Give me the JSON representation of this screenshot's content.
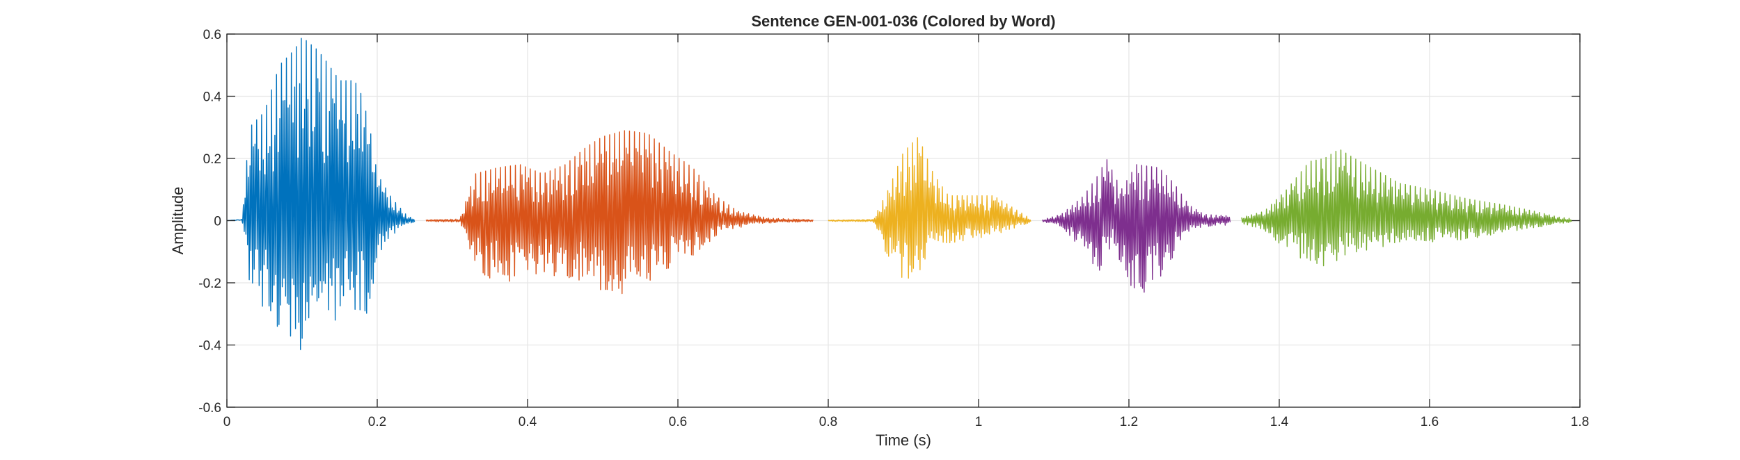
{
  "chart_data": {
    "type": "line",
    "title": "Sentence GEN-001-036 (Colored by Word)",
    "xlabel": "Time (s)",
    "ylabel": "Amplitude",
    "xlim": [
      0,
      1.8
    ],
    "ylim": [
      -0.6,
      0.6
    ],
    "xticks": [
      0,
      0.2,
      0.4,
      0.6,
      0.8,
      1,
      1.2,
      1.4,
      1.6,
      1.8
    ],
    "xtick_labels": [
      "0",
      "0.2",
      "0.4",
      "0.6",
      "0.8",
      "1",
      "1.2",
      "1.4",
      "1.6",
      "1.8"
    ],
    "yticks": [
      -0.6,
      -0.4,
      -0.2,
      0,
      0.2,
      0.4,
      0.6
    ],
    "ytick_labels": [
      "-0.6",
      "-0.4",
      "-0.2",
      "0",
      "0.2",
      "0.4",
      "0.6"
    ],
    "grid": true,
    "series": [
      {
        "color": "#0072BD",
        "t_start": 0.0,
        "t_end": 0.25,
        "envelope": [
          [
            0.0,
            0.0
          ],
          [
            0.02,
            0.004
          ],
          [
            0.03,
            0.3
          ],
          [
            0.05,
            0.35
          ],
          [
            0.07,
            0.5
          ],
          [
            0.09,
            0.55
          ],
          [
            0.1,
            0.59
          ],
          [
            0.12,
            0.55
          ],
          [
            0.13,
            0.52
          ],
          [
            0.15,
            0.45
          ],
          [
            0.17,
            0.45
          ],
          [
            0.18,
            0.4
          ],
          [
            0.19,
            0.3
          ],
          [
            0.2,
            0.15
          ],
          [
            0.22,
            0.07
          ],
          [
            0.24,
            0.015
          ],
          [
            0.25,
            0.005
          ]
        ],
        "envelope_neg": [
          [
            0.0,
            0.0
          ],
          [
            0.02,
            0.004
          ],
          [
            0.03,
            -0.2
          ],
          [
            0.05,
            -0.3
          ],
          [
            0.07,
            -0.36
          ],
          [
            0.1,
            -0.42
          ],
          [
            0.12,
            -0.38
          ],
          [
            0.14,
            -0.33
          ],
          [
            0.16,
            -0.3
          ],
          [
            0.19,
            -0.3
          ],
          [
            0.2,
            -0.12
          ],
          [
            0.22,
            -0.05
          ],
          [
            0.24,
            -0.01
          ],
          [
            0.25,
            -0.005
          ]
        ]
      },
      {
        "color": "#D95319",
        "t_start": 0.265,
        "t_end": 0.78,
        "envelope": [
          [
            0.265,
            0.003
          ],
          [
            0.31,
            0.005
          ],
          [
            0.33,
            0.15
          ],
          [
            0.36,
            0.17
          ],
          [
            0.39,
            0.18
          ],
          [
            0.42,
            0.15
          ],
          [
            0.45,
            0.18
          ],
          [
            0.48,
            0.24
          ],
          [
            0.5,
            0.27
          ],
          [
            0.53,
            0.29
          ],
          [
            0.56,
            0.28
          ],
          [
            0.59,
            0.22
          ],
          [
            0.62,
            0.17
          ],
          [
            0.65,
            0.08
          ],
          [
            0.68,
            0.03
          ],
          [
            0.72,
            0.008
          ],
          [
            0.78,
            0.003
          ]
        ],
        "envelope_neg": [
          [
            0.265,
            -0.003
          ],
          [
            0.31,
            -0.005
          ],
          [
            0.33,
            -0.17
          ],
          [
            0.36,
            -0.2
          ],
          [
            0.4,
            -0.2
          ],
          [
            0.43,
            -0.19
          ],
          [
            0.46,
            -0.21
          ],
          [
            0.49,
            -0.22
          ],
          [
            0.53,
            -0.24
          ],
          [
            0.56,
            -0.2
          ],
          [
            0.6,
            -0.15
          ],
          [
            0.63,
            -0.1
          ],
          [
            0.66,
            -0.04
          ],
          [
            0.7,
            -0.01
          ],
          [
            0.78,
            -0.003
          ]
        ]
      },
      {
        "color": "#EDB120",
        "t_start": 0.8,
        "t_end": 1.07,
        "envelope": [
          [
            0.8,
            0.002
          ],
          [
            0.86,
            0.004
          ],
          [
            0.88,
            0.1
          ],
          [
            0.9,
            0.22
          ],
          [
            0.92,
            0.27
          ],
          [
            0.94,
            0.15
          ],
          [
            0.96,
            0.08
          ],
          [
            0.99,
            0.08
          ],
          [
            1.02,
            0.08
          ],
          [
            1.04,
            0.05
          ],
          [
            1.06,
            0.02
          ],
          [
            1.07,
            0.005
          ]
        ],
        "envelope_neg": [
          [
            0.8,
            -0.002
          ],
          [
            0.86,
            -0.004
          ],
          [
            0.88,
            -0.13
          ],
          [
            0.9,
            -0.2
          ],
          [
            0.92,
            -0.17
          ],
          [
            0.94,
            -0.09
          ],
          [
            0.97,
            -0.07
          ],
          [
            1.0,
            -0.06
          ],
          [
            1.03,
            -0.04
          ],
          [
            1.06,
            -0.015
          ],
          [
            1.07,
            -0.005
          ]
        ]
      },
      {
        "color": "#7E2F8E",
        "t_start": 1.085,
        "t_end": 1.335,
        "envelope": [
          [
            1.085,
            0.003
          ],
          [
            1.11,
            0.02
          ],
          [
            1.14,
            0.08
          ],
          [
            1.16,
            0.15
          ],
          [
            1.17,
            0.2
          ],
          [
            1.19,
            0.1
          ],
          [
            1.21,
            0.18
          ],
          [
            1.24,
            0.17
          ],
          [
            1.26,
            0.12
          ],
          [
            1.28,
            0.05
          ],
          [
            1.3,
            0.02
          ],
          [
            1.335,
            0.015
          ]
        ],
        "envelope_neg": [
          [
            1.085,
            -0.003
          ],
          [
            1.11,
            -0.02
          ],
          [
            1.14,
            -0.1
          ],
          [
            1.16,
            -0.17
          ],
          [
            1.18,
            -0.08
          ],
          [
            1.2,
            -0.25
          ],
          [
            1.22,
            -0.24
          ],
          [
            1.24,
            -0.2
          ],
          [
            1.26,
            -0.12
          ],
          [
            1.28,
            -0.04
          ],
          [
            1.3,
            -0.02
          ],
          [
            1.335,
            -0.015
          ]
        ]
      },
      {
        "color": "#77AC30",
        "t_start": 1.35,
        "t_end": 1.79,
        "envelope": [
          [
            1.35,
            0.01
          ],
          [
            1.38,
            0.03
          ],
          [
            1.41,
            0.1
          ],
          [
            1.44,
            0.19
          ],
          [
            1.46,
            0.2
          ],
          [
            1.48,
            0.23
          ],
          [
            1.5,
            0.2
          ],
          [
            1.53,
            0.16
          ],
          [
            1.56,
            0.12
          ],
          [
            1.6,
            0.1
          ],
          [
            1.65,
            0.07
          ],
          [
            1.7,
            0.05
          ],
          [
            1.74,
            0.03
          ],
          [
            1.77,
            0.012
          ],
          [
            1.79,
            0.006
          ]
        ],
        "envelope_neg": [
          [
            1.35,
            -0.01
          ],
          [
            1.38,
            -0.03
          ],
          [
            1.41,
            -0.1
          ],
          [
            1.44,
            -0.14
          ],
          [
            1.46,
            -0.15
          ],
          [
            1.49,
            -0.12
          ],
          [
            1.52,
            -0.1
          ],
          [
            1.55,
            -0.08
          ],
          [
            1.6,
            -0.07
          ],
          [
            1.65,
            -0.06
          ],
          [
            1.7,
            -0.04
          ],
          [
            1.74,
            -0.025
          ],
          [
            1.77,
            -0.01
          ],
          [
            1.79,
            -0.005
          ]
        ]
      }
    ]
  }
}
